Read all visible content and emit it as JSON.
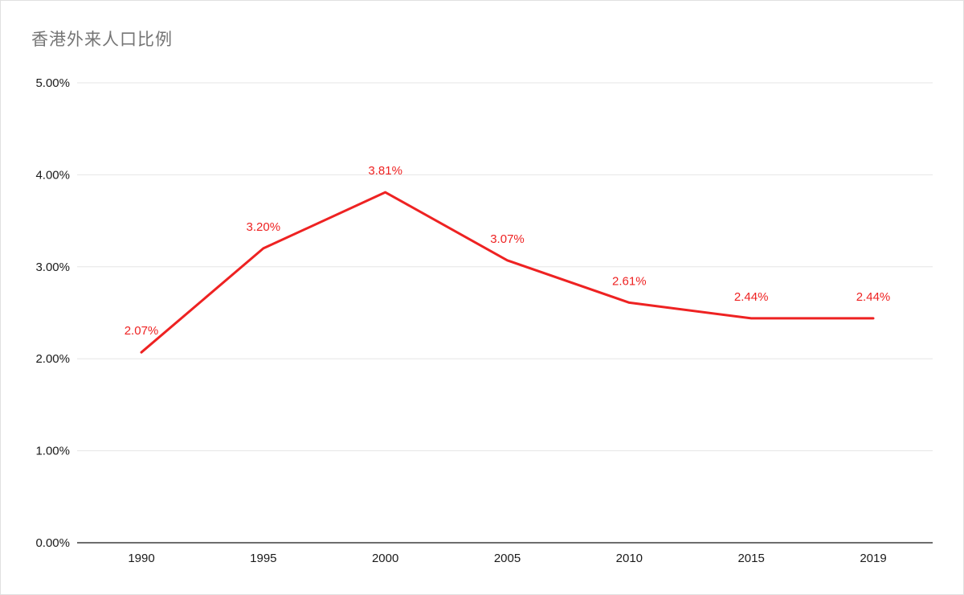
{
  "page": {
    "title": "香港外来人口比例"
  },
  "chart_data": {
    "type": "line",
    "title": "香港外来人口比例",
    "categories": [
      "1990",
      "1995",
      "2000",
      "2005",
      "2010",
      "2015",
      "2019"
    ],
    "values": [
      2.07,
      3.2,
      3.81,
      3.07,
      2.61,
      2.44,
      2.44
    ],
    "point_labels": [
      "2.07%",
      "3.20%",
      "3.81%",
      "3.07%",
      "2.61%",
      "2.44%",
      "2.44%"
    ],
    "xlabel": "",
    "ylabel": "",
    "ylim": [
      0,
      5
    ],
    "y_ticks": [
      0,
      1,
      2,
      3,
      4,
      5
    ],
    "y_tick_labels": [
      "0.00%",
      "1.00%",
      "2.00%",
      "3.00%",
      "4.00%",
      "5.00%"
    ],
    "grid": true,
    "legend_position": "none",
    "colors": {
      "line": "#ee2222",
      "point_label": "#ee2222",
      "grid": "#e6e6e6",
      "axis": "#6d6d6d",
      "tick_label": "#1a1a1a",
      "title": "#757575"
    }
  }
}
